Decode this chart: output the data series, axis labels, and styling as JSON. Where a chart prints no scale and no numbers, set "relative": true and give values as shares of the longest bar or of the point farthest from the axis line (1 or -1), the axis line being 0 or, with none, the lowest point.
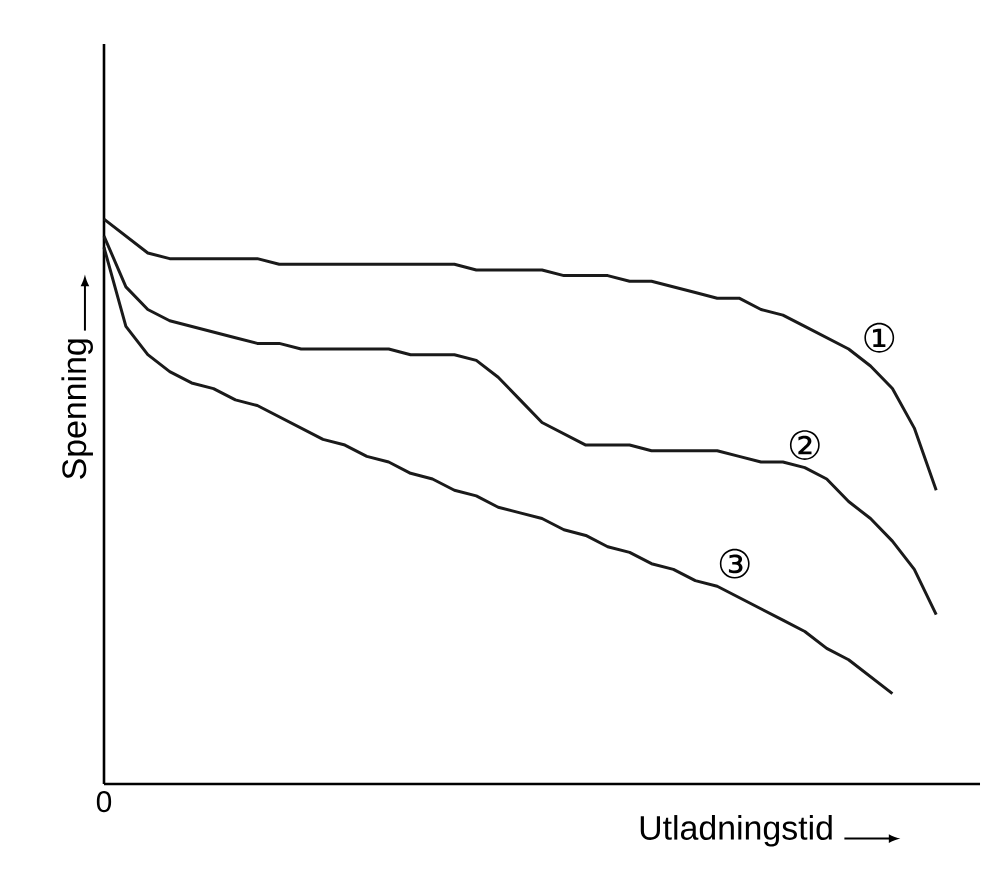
{
  "chart_data": {
    "type": "line",
    "relative": true,
    "xlabel": "Utladningstid",
    "ylabel": "Spenning",
    "annotations": [
      "0"
    ],
    "line_style": "solid",
    "marker": "none",
    "categories": [
      null,
      null,
      null,
      null,
      null,
      null,
      null,
      null,
      null,
      null,
      null,
      null,
      null,
      null,
      null,
      null,
      null,
      null,
      null,
      null,
      null,
      null,
      null,
      null,
      null,
      null,
      null,
      null,
      null,
      null,
      null,
      null,
      null,
      null,
      null,
      null,
      null,
      null,
      null
    ],
    "series": [
      {
        "name": "①",
        "color": "#1a1a1a",
        "values": [
          1.0,
          0.97,
          0.94,
          0.93,
          0.93,
          0.93,
          0.93,
          0.93,
          0.92,
          0.92,
          0.92,
          0.92,
          0.92,
          0.92,
          0.92,
          0.92,
          0.92,
          0.91,
          0.91,
          0.91,
          0.91,
          0.9,
          0.9,
          0.9,
          0.89,
          0.89,
          0.88,
          0.87,
          0.86,
          0.86,
          0.84,
          0.83,
          0.81,
          0.79,
          0.77,
          0.74,
          0.7,
          0.63,
          0.52
        ]
      },
      {
        "name": "②",
        "color": "#1a1a1a",
        "values": [
          0.97,
          0.88,
          0.84,
          0.82,
          0.81,
          0.8,
          0.79,
          0.78,
          0.78,
          0.77,
          0.77,
          0.77,
          0.77,
          0.77,
          0.76,
          0.76,
          0.76,
          0.75,
          0.72,
          0.68,
          0.64,
          0.62,
          0.6,
          0.6,
          0.6,
          0.59,
          0.59,
          0.59,
          0.59,
          0.58,
          0.57,
          0.57,
          0.56,
          0.54,
          0.5,
          0.47,
          0.43,
          0.38,
          0.3
        ]
      },
      {
        "name": "③",
        "color": "#1a1a1a",
        "values": [
          0.95,
          0.81,
          0.76,
          0.73,
          0.71,
          0.7,
          0.68,
          0.67,
          0.65,
          0.63,
          0.61,
          0.6,
          0.58,
          0.57,
          0.55,
          0.54,
          0.52,
          0.51,
          0.49,
          0.48,
          0.47,
          0.45,
          0.44,
          0.42,
          0.41,
          0.39,
          0.38,
          0.36,
          0.35,
          0.33,
          0.31,
          0.29,
          0.27,
          0.24,
          0.22,
          0.19,
          0.16,
          null,
          null
        ]
      }
    ]
  }
}
